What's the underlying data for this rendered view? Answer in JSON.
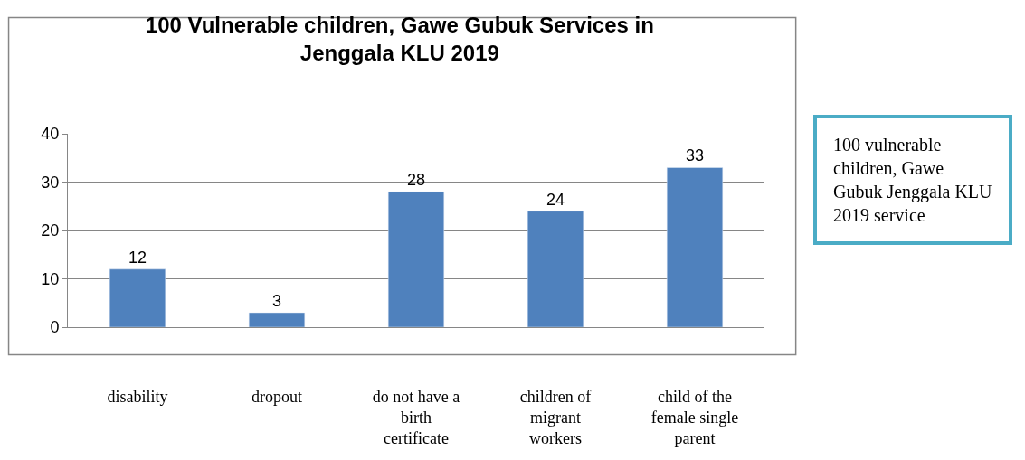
{
  "chart_data": {
    "type": "bar",
    "title": "100 Vulnerable children, Gawe Gubuk Services in Jenggala KLU 2019",
    "categories": [
      "disability",
      "dropout",
      "do not have a birth certificate",
      "children of migrant workers",
      "child of the female single parent"
    ],
    "values": [
      12,
      3,
      28,
      24,
      33
    ],
    "color": "#4f81bd",
    "ylim": [
      0,
      40
    ],
    "yticks": [
      0,
      10,
      20,
      30,
      40
    ],
    "grid": "y",
    "data_labels": true,
    "annotations": [
      "100 vulnerable children, Gawe Gubuk Jenggala KLU 2019 service"
    ]
  }
}
